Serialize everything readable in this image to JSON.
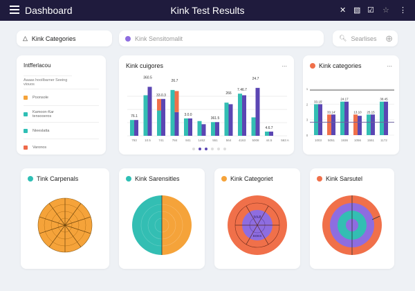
{
  "header": {
    "menu_icon": "hamburger-icon",
    "app_label": "Dashboard",
    "title": "Kink Test Results",
    "icons": [
      "bell-off-icon",
      "image-off-icon",
      "check-square-icon",
      "star-icon",
      "more-vertical-icon"
    ]
  },
  "filters": {
    "category_label": "Kink Categories",
    "sensitivity_placeholder": "Kink Sensitomalit",
    "search_placeholder": "Searlises"
  },
  "legend_card": {
    "title": "Intfferlacou",
    "subtitle": "Aaaas hooilbarner Seeing viouos",
    "items": [
      {
        "label": "Poonsole",
        "color": "#f5a33a"
      },
      {
        "label": "Kamoon-Kar tensooeros",
        "color": "#2fbfb5"
      },
      {
        "label": "Nieeslatta",
        "color": "#2fbfb5"
      },
      {
        "label": "Varonos",
        "color": "#ee6a4a"
      }
    ]
  },
  "colors": {
    "teal": "#33beb3",
    "purple": "#5b46b3",
    "orange": "#f0704a",
    "amber": "#f5a33a",
    "lavender": "#8e6de0",
    "header": "#1f1b3d"
  },
  "chart_data": [
    {
      "type": "bar",
      "title": "Kink cuigores",
      "more": "...",
      "categories": [
        "793",
        "10.5",
        "741",
        "784",
        "841",
        "1462",
        "551",
        "564",
        "4163",
        "5008",
        "44.5"
      ],
      "trailing_label": "563 A",
      "series": [
        {
          "values": [
            30,
            77,
            48,
            87,
            33,
            28,
            26,
            63,
            80,
            35,
            8
          ]
        },
        {
          "values": [
            30,
            93,
            70,
            45,
            33,
            22,
            26,
            60,
            77,
            91,
            8
          ]
        }
      ],
      "accent": [
        {
          "group": 2,
          "on": 0,
          "from": 48,
          "to": 70
        },
        {
          "group": 3,
          "on": 1,
          "from": 45,
          "to": 85
        }
      ],
      "data_labels": [
        "76.1",
        "360.5",
        "33.0.3",
        "26.7",
        "3.0.0",
        "",
        "361.5",
        "266",
        "7.46.7",
        "24.7",
        "4.6.7"
      ],
      "pager": {
        "count": 6,
        "active": [
          1,
          2
        ]
      }
    },
    {
      "type": "bar",
      "title": "Kink categories",
      "more": "...",
      "categories": [
        "1003",
        "5051",
        "1936",
        "1056",
        "1551",
        "1172"
      ],
      "yticks": [
        "0",
        "3",
        "2",
        "1"
      ],
      "series": [
        {
          "values": [
            2.4,
            1.6,
            2.6,
            1.6,
            1.6,
            2.6
          ],
          "colors": [
            "teal",
            "orange",
            "teal",
            "orange",
            "teal",
            "teal"
          ]
        },
        {
          "values": [
            2.4,
            1.6,
            2.6,
            1.5,
            1.6,
            2.6
          ]
        }
      ],
      "data_labels": [
        "33.15'",
        "33.14'",
        "24.17",
        "13.10",
        "25.15",
        "38.45"
      ],
      "reference_lines": [
        3.5,
        1.0
      ]
    },
    {
      "type": "pie",
      "title": "Tink Carpenals",
      "dot": "#2fbfb5"
    },
    {
      "type": "pie",
      "title": "Kink Sarensitles",
      "dot": "#2fbfb5",
      "slices": [
        {
          "value": 50,
          "color": "#33beb3"
        },
        {
          "value": 50,
          "color": "#f5a33a"
        }
      ]
    },
    {
      "type": "pie",
      "title": "Kink Categoriet",
      "dot": "#f5a33a",
      "inner_labels": [
        "5ALB",
        "BOES"
      ]
    },
    {
      "type": "pie",
      "title": "Kink Sarsutel",
      "dot": "#f0704a"
    }
  ]
}
